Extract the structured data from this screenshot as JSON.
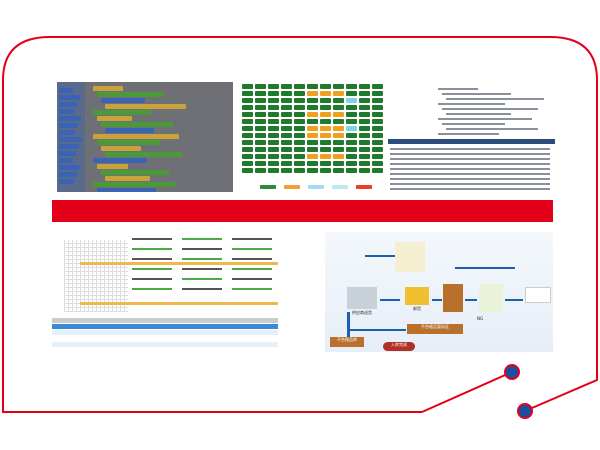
{
  "colors": {
    "frame_red": "#e3001b",
    "node_blue": "#1a4fa0",
    "block_green": "#1f7a2e",
    "block_orange": "#f0a020",
    "block_cyan": "#7fd3e6"
  },
  "legend_swatches": [
    "#2d8a3a",
    "#f0a030",
    "#9fdcf0",
    "#bfe6f5",
    "#e84020"
  ],
  "flow_diagram": {
    "labels": [
      "供应商送货",
      "卸货",
      "不合格品暂存区",
      "不合格品库",
      "入库完成",
      "NG"
    ]
  }
}
